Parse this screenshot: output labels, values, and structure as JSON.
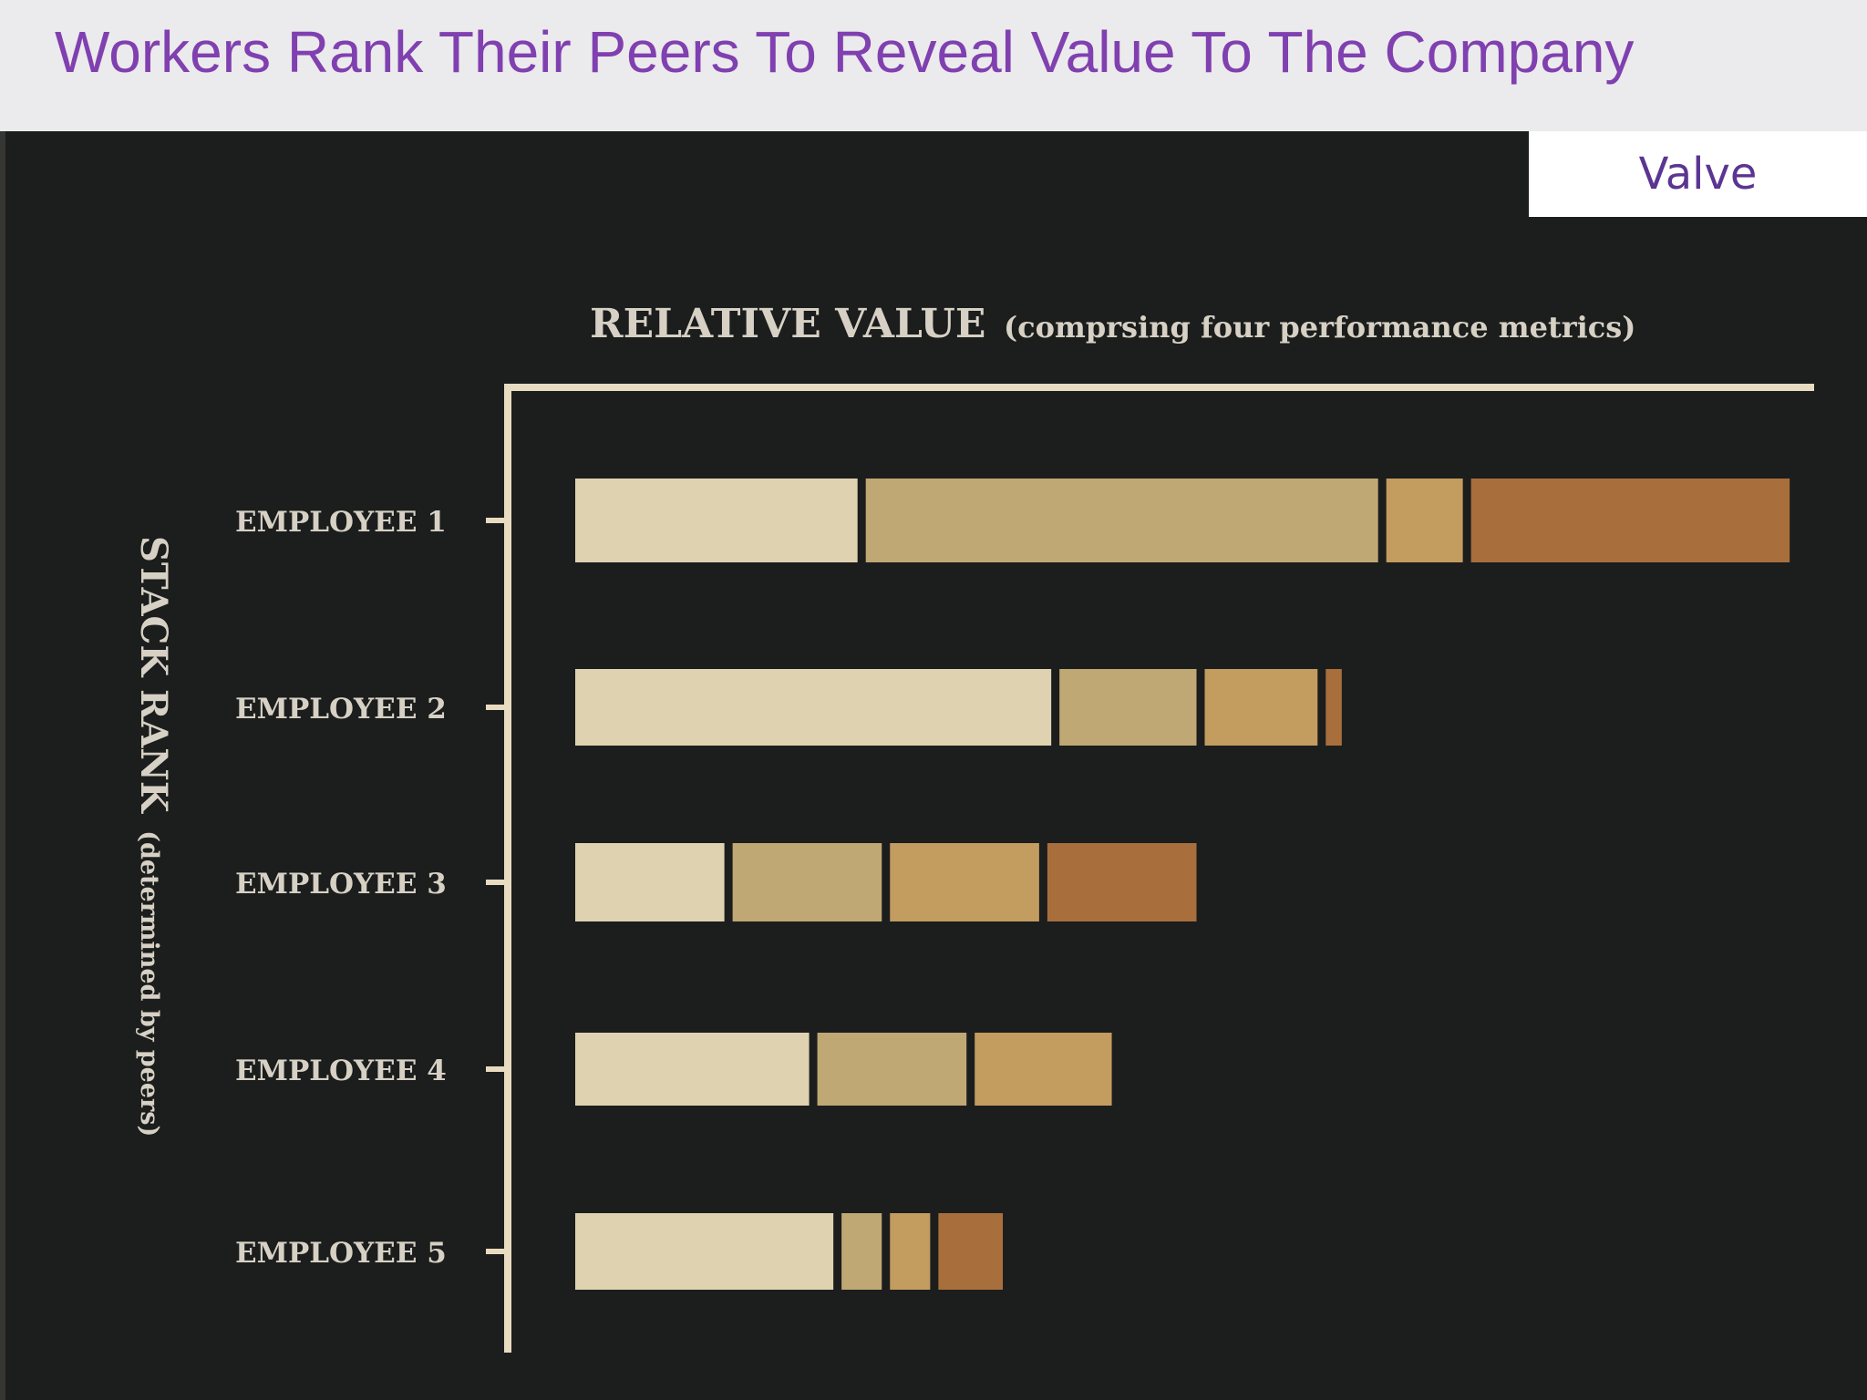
{
  "slide": {
    "title": "Workers Rank Their Peers To Reveal Value To The Company",
    "source": "Valve"
  },
  "colors": {
    "background": "#1c1d1d",
    "axis": "#e8dcc0",
    "label": "#d6d1c4",
    "title_purple": "#8040b0",
    "segments": [
      "#dfd2b0",
      "#bfa873",
      "#c39c5f",
      "#a86f3c"
    ]
  },
  "chart_data": {
    "type": "bar",
    "orientation": "horizontal",
    "stacked": true,
    "title_main": "RELATIVE VALUE",
    "title_sub": "(comprsing four performance metrics)",
    "ylabel_main": "STACK RANK",
    "ylabel_sub": "(determined by peers)",
    "categories": [
      "EMPLOYEE 1",
      "EMPLOYEE 2",
      "EMPLOYEE 3",
      "EMPLOYEE 4",
      "EMPLOYEE 5"
    ],
    "series": [
      {
        "values": [
          24,
          40,
          13,
          20,
          22
        ]
      },
      {
        "values": [
          43,
          12,
          13,
          13,
          4
        ]
      },
      {
        "values": [
          7,
          10,
          13,
          12,
          4
        ]
      },
      {
        "values": [
          27,
          2,
          13,
          0,
          6
        ]
      }
    ],
    "xlim": [
      0,
      104
    ],
    "grid": false,
    "legend": "none"
  }
}
